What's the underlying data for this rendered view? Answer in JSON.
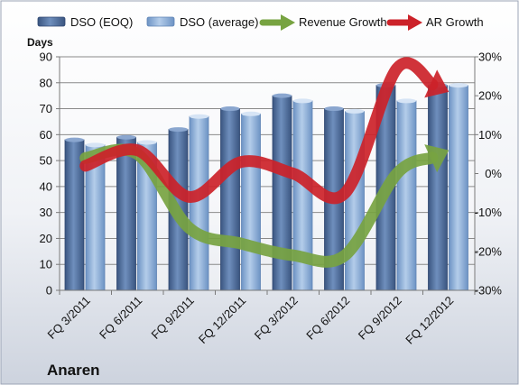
{
  "company": "Anaren",
  "chart_data": {
    "type": "bar",
    "categories": [
      "FQ 3/2011",
      "FQ 6/2011",
      "FQ 9/2011",
      "FQ 12/2011",
      "FQ 3/2012",
      "FQ 6/2012",
      "FQ 9/2012",
      "FQ 12/2012"
    ],
    "ylabel": "Days",
    "ylim": [
      0,
      90
    ],
    "y_ticks": [
      0,
      10,
      20,
      30,
      40,
      50,
      60,
      70,
      80,
      90
    ],
    "y2lim": [
      -30,
      30
    ],
    "y2_ticks": [
      "-30%",
      "-20%",
      "-10%",
      "0%",
      "10%",
      "20%",
      "30%"
    ],
    "grid": true,
    "legend_position": "top",
    "series": [
      {
        "name": "DSO (EOQ)",
        "axis": "left",
        "kind": "bar",
        "color": "#4f6f9f",
        "values": [
          58,
          59,
          62,
          70,
          75,
          70,
          79,
          79
        ]
      },
      {
        "name": "DSO (average)",
        "axis": "left",
        "kind": "bar",
        "color": "#8fb0d9",
        "values": [
          56,
          57,
          67,
          68,
          73,
          69,
          73,
          79
        ]
      },
      {
        "name": "Revenue Growth",
        "axis": "right",
        "kind": "arrow-line",
        "color": "#77a341",
        "values": [
          4,
          5,
          -14,
          -18,
          -21,
          -21,
          0,
          6
        ]
      },
      {
        "name": "AR Growth",
        "axis": "right",
        "kind": "arrow-line",
        "color": "#cc2229",
        "values": [
          2,
          6,
          -6,
          3,
          0,
          -5,
          27,
          21
        ]
      }
    ]
  }
}
